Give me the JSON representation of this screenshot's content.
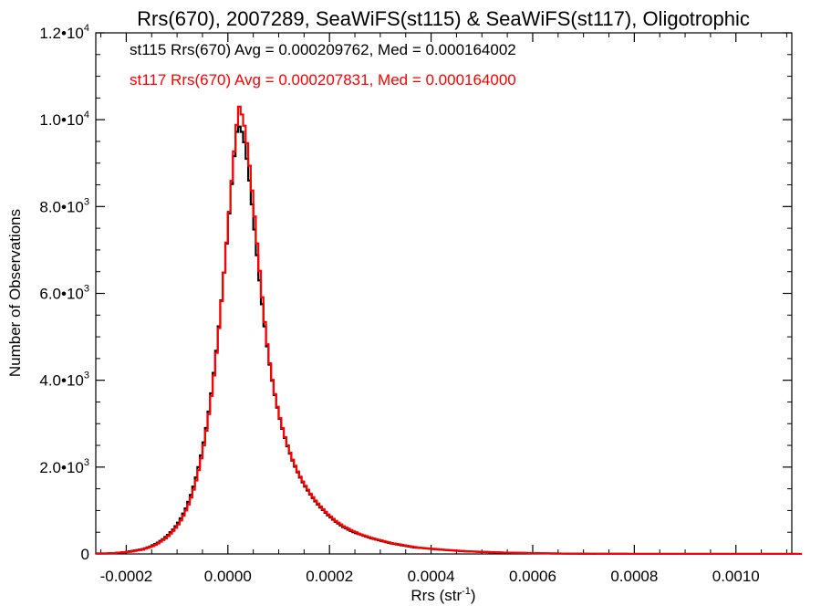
{
  "chart_data": {
    "type": "histogram-step",
    "title": "Rrs(670), 2007289, SeaWiFS(st115) & SeaWiFS(st117), Oligotrophic",
    "xlabel": "Rrs (str",
    "xlabel_sup": "-1",
    "xlabel_end": ")",
    "ylabel": "Number of Observations",
    "xlim": [
      -0.00026,
      0.00111
    ],
    "ylim": [
      0,
      12000
    ],
    "x_ticks": [
      {
        "value": -0.0002,
        "label": "-0.0002"
      },
      {
        "value": 0.0,
        "label": "0.0000"
      },
      {
        "value": 0.0002,
        "label": "0.0002"
      },
      {
        "value": 0.0004,
        "label": "0.0004"
      },
      {
        "value": 0.0006,
        "label": "0.0006"
      },
      {
        "value": 0.0008,
        "label": "0.0008"
      },
      {
        "value": 0.001,
        "label": "0.0010"
      }
    ],
    "y_ticks": [
      {
        "value": 0,
        "mant": "0",
        "exp": ""
      },
      {
        "value": 2000,
        "mant": "2.0•1",
        "exp": "3"
      },
      {
        "value": 4000,
        "mant": "4.0•1",
        "exp": "3"
      },
      {
        "value": 6000,
        "mant": "6.0•1",
        "exp": "3"
      },
      {
        "value": 8000,
        "mant": "8.0•1",
        "exp": "3"
      },
      {
        "value": 10000,
        "mant": "1.0•1",
        "exp": "4"
      },
      {
        "value": 12000,
        "mant": "1.2•1",
        "exp": "4"
      }
    ],
    "bin_start": -0.00026,
    "bin_width": 5e-06,
    "series": [
      {
        "name": "st115 Rrs(670) Avg = 0.000209762, Med = 0.000164002",
        "color": "#000000",
        "counts": [
          10,
          10,
          10,
          10,
          10,
          20,
          20,
          20,
          30,
          30,
          40,
          40,
          50,
          60,
          70,
          80,
          90,
          100,
          110,
          130,
          150,
          170,
          200,
          230,
          260,
          300,
          340,
          390,
          440,
          500,
          560,
          640,
          720,
          820,
          930,
          1050,
          1200,
          1360,
          1550,
          1760,
          2000,
          2270,
          2570,
          2900,
          3280,
          3700,
          4170,
          4680,
          5240,
          5840,
          6480,
          7150,
          7840,
          8520,
          9160,
          9720,
          9840,
          9720,
          9480,
          9100,
          8600,
          8050,
          7470,
          6880,
          6300,
          5750,
          5240,
          4780,
          4360,
          3990,
          3660,
          3370,
          3110,
          2880,
          2670,
          2480,
          2310,
          2150,
          2010,
          1880,
          1760,
          1650,
          1550,
          1460,
          1370,
          1290,
          1210,
          1140,
          1070,
          1010,
          950,
          890,
          840,
          790,
          740,
          700,
          660,
          620,
          590,
          560,
          530,
          500,
          480,
          460,
          440,
          420,
          400,
          380,
          360,
          345,
          330,
          315,
          300,
          285,
          270,
          255,
          240,
          230,
          220,
          210,
          200,
          190,
          180,
          170,
          160,
          150,
          145,
          140,
          135,
          130,
          125,
          120,
          115,
          110,
          105,
          100,
          96,
          92,
          88,
          84,
          80,
          76,
          72,
          68,
          64,
          60,
          58,
          56,
          54,
          52,
          50,
          48,
          46,
          44,
          42,
          40,
          38,
          36,
          34,
          32,
          30,
          29,
          28,
          27,
          26,
          25,
          24,
          23,
          22,
          21,
          20,
          19,
          18,
          17,
          16,
          15,
          14,
          13,
          12,
          11,
          10,
          10,
          9,
          9,
          8,
          8,
          7,
          7,
          6,
          6,
          5,
          5,
          5,
          4,
          4,
          4,
          3,
          3,
          3,
          3,
          2,
          2,
          2,
          2,
          2,
          2,
          2,
          2,
          2,
          1,
          1,
          1,
          1,
          1,
          1,
          1,
          1,
          1,
          1,
          1,
          1,
          1,
          1,
          1,
          1,
          1,
          1,
          1,
          1,
          1,
          1,
          1,
          1,
          1,
          1,
          1,
          1,
          1,
          1,
          1,
          1,
          1,
          1,
          1,
          1,
          1,
          1,
          1,
          1,
          1,
          1,
          1,
          1,
          1,
          1,
          1,
          1,
          1,
          1,
          1,
          1,
          1,
          1,
          1,
          1,
          1,
          1,
          1,
          1,
          1,
          1,
          1,
          1,
          1,
          1,
          1,
          1,
          1
        ]
      },
      {
        "name": "st117 Rrs(670) Avg = 0.000207831, Med = 0.000164000",
        "color": "#ff0000",
        "counts": [
          10,
          10,
          10,
          10,
          10,
          20,
          20,
          20,
          30,
          30,
          40,
          40,
          50,
          50,
          60,
          70,
          80,
          90,
          100,
          120,
          140,
          160,
          180,
          210,
          240,
          280,
          320,
          360,
          410,
          470,
          530,
          600,
          680,
          770,
          880,
          1000,
          1140,
          1300,
          1480,
          1690,
          1930,
          2200,
          2500,
          2840,
          3220,
          3640,
          4110,
          4630,
          5200,
          5820,
          6480,
          7170,
          7880,
          8590,
          9270,
          9880,
          10300,
          10120,
          9860,
          9460,
          8940,
          8370,
          7770,
          7150,
          6520,
          5910,
          5340,
          4830,
          4390,
          4010,
          3680,
          3390,
          3130,
          2900,
          2690,
          2500,
          2330,
          2170,
          2030,
          1900,
          1780,
          1670,
          1570,
          1480,
          1390,
          1310,
          1230,
          1160,
          1090,
          1030,
          970,
          910,
          860,
          810,
          760,
          720,
          680,
          640,
          610,
          580,
          550,
          520,
          500,
          470,
          450,
          430,
          410,
          390,
          370,
          355,
          340,
          325,
          310,
          295,
          280,
          265,
          250,
          240,
          230,
          220,
          210,
          200,
          190,
          180,
          170,
          160,
          150,
          145,
          140,
          135,
          130,
          125,
          120,
          115,
          110,
          105,
          100,
          96,
          92,
          88,
          84,
          80,
          76,
          72,
          68,
          64,
          60,
          58,
          56,
          54,
          52,
          50,
          48,
          46,
          44,
          42,
          40,
          38,
          36,
          34,
          32,
          30,
          29,
          28,
          27,
          26,
          25,
          24,
          23,
          22,
          21,
          20,
          19,
          18,
          17,
          16,
          15,
          14,
          13,
          12,
          11,
          10,
          10,
          9,
          9,
          8,
          8,
          7,
          7,
          6,
          6,
          5,
          5,
          5,
          4,
          4,
          4,
          3,
          3,
          3,
          3,
          2,
          2,
          2,
          2,
          2,
          2,
          2,
          2,
          2,
          1,
          1,
          1,
          1,
          1,
          1,
          1,
          1,
          1,
          1,
          1,
          1,
          1,
          1,
          1,
          1,
          1,
          1,
          1,
          1,
          1,
          1,
          1,
          1,
          1,
          1,
          1,
          1,
          1,
          1,
          1,
          1,
          1,
          1,
          1,
          1,
          1,
          1,
          1,
          1,
          1,
          1,
          1,
          1,
          1,
          1,
          1,
          1,
          1,
          1,
          1,
          1,
          1,
          1,
          1,
          1,
          1,
          1,
          1,
          1,
          1,
          1,
          1,
          1,
          1,
          1,
          1,
          1,
          1
        ]
      }
    ],
    "grid": false,
    "legend_placement": "top-left"
  }
}
